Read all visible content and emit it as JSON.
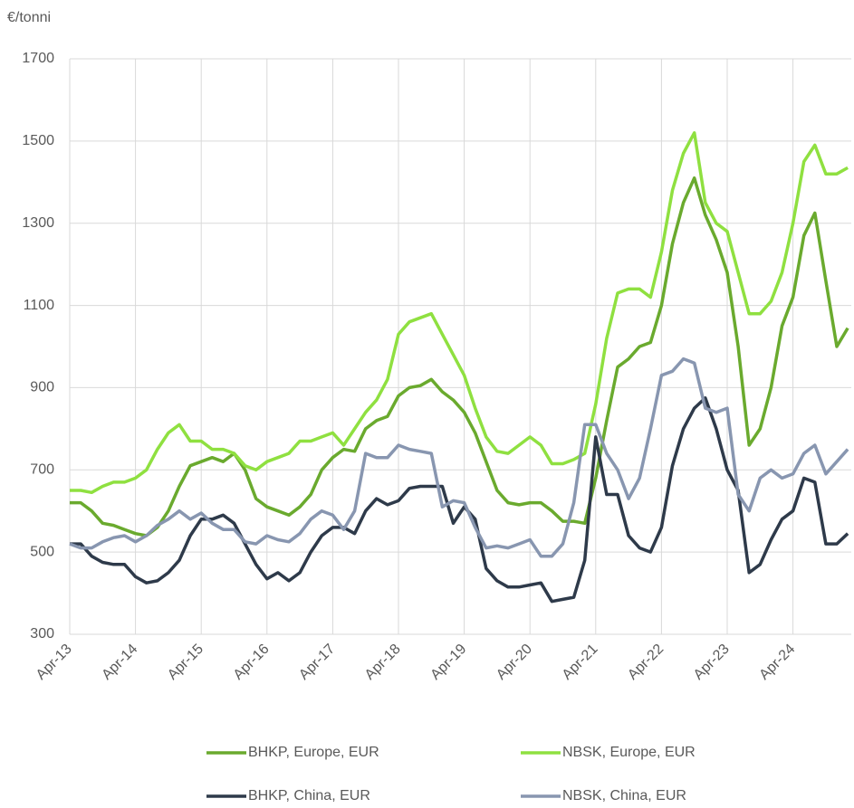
{
  "chart_data": {
    "type": "line",
    "y_axis_label": "€/tonni",
    "categories": [
      "Apr-13",
      null,
      null,
      null,
      null,
      null,
      "Apr-14",
      null,
      null,
      null,
      null,
      null,
      "Apr-15",
      null,
      null,
      null,
      null,
      null,
      "Apr-16",
      null,
      null,
      null,
      null,
      null,
      "Apr-17",
      null,
      null,
      null,
      null,
      null,
      "Apr-18",
      null,
      null,
      null,
      null,
      null,
      "Apr-19",
      null,
      null,
      null,
      null,
      null,
      "Apr-20",
      null,
      null,
      null,
      null,
      null,
      "Apr-21",
      null,
      null,
      null,
      null,
      null,
      "Apr-22",
      null,
      null,
      null,
      null,
      null,
      "Apr-23",
      null,
      null,
      null,
      null,
      null,
      "Apr-24",
      null,
      null,
      null,
      null,
      null
    ],
    "series": [
      {
        "name": "BHKP, Europe, EUR",
        "color": "#6aaa2e",
        "values": [
          620,
          620,
          600,
          570,
          565,
          555,
          545,
          540,
          560,
          600,
          660,
          710,
          720,
          730,
          720,
          740,
          700,
          630,
          610,
          600,
          590,
          610,
          640,
          700,
          730,
          750,
          745,
          800,
          820,
          830,
          880,
          900,
          905,
          920,
          890,
          870,
          840,
          790,
          720,
          650,
          620,
          615,
          620,
          620,
          600,
          575,
          575,
          570,
          680,
          820,
          950,
          970,
          1000,
          1010,
          1100,
          1250,
          1350,
          1410,
          1320,
          1260,
          1180,
          1000,
          760,
          800,
          900,
          1050,
          1120,
          1270,
          1325,
          1160,
          1000,
          1045
        ]
      },
      {
        "name": "NBSK, Europe, EUR",
        "color": "#8fe040",
        "values": [
          650,
          650,
          645,
          660,
          670,
          670,
          680,
          700,
          750,
          790,
          810,
          770,
          770,
          750,
          750,
          740,
          710,
          700,
          720,
          730,
          740,
          770,
          770,
          780,
          790,
          760,
          800,
          840,
          870,
          920,
          1030,
          1060,
          1070,
          1080,
          1030,
          980,
          930,
          850,
          780,
          745,
          740,
          760,
          780,
          760,
          715,
          715,
          725,
          740,
          860,
          1020,
          1130,
          1140,
          1140,
          1120,
          1230,
          1380,
          1470,
          1520,
          1350,
          1300,
          1280,
          1180,
          1080,
          1080,
          1110,
          1180,
          1300,
          1450,
          1490,
          1420,
          1420,
          1435
        ]
      },
      {
        "name": "BHKP, China, EUR",
        "color": "#2e3a4a",
        "values": [
          520,
          520,
          490,
          475,
          470,
          470,
          440,
          425,
          430,
          450,
          480,
          540,
          580,
          580,
          590,
          570,
          520,
          470,
          435,
          450,
          430,
          450,
          500,
          540,
          560,
          560,
          545,
          600,
          630,
          615,
          625,
          655,
          660,
          660,
          660,
          570,
          610,
          580,
          460,
          430,
          415,
          415,
          420,
          425,
          380,
          385,
          390,
          480,
          780,
          640,
          640,
          540,
          510,
          500,
          560,
          710,
          800,
          850,
          875,
          800,
          700,
          650,
          450,
          470,
          530,
          580,
          600,
          680,
          670,
          520,
          520,
          545
        ]
      },
      {
        "name": "NBSK, China, EUR",
        "color": "#8896b0",
        "values": [
          520,
          510,
          510,
          525,
          535,
          540,
          525,
          540,
          565,
          580,
          600,
          580,
          595,
          570,
          555,
          555,
          525,
          520,
          540,
          530,
          525,
          545,
          580,
          600,
          590,
          555,
          600,
          740,
          730,
          730,
          760,
          750,
          745,
          740,
          610,
          625,
          620,
          560,
          510,
          515,
          510,
          520,
          530,
          490,
          490,
          520,
          620,
          810,
          810,
          740,
          700,
          630,
          680,
          800,
          930,
          940,
          970,
          960,
          850,
          840,
          850,
          640,
          600,
          680,
          700,
          680,
          690,
          740,
          760,
          690,
          720,
          750
        ]
      }
    ],
    "ylim": [
      300,
      1700
    ],
    "yticks": [
      300,
      500,
      700,
      900,
      1100,
      1300,
      1500,
      1700
    ],
    "grid": true
  }
}
